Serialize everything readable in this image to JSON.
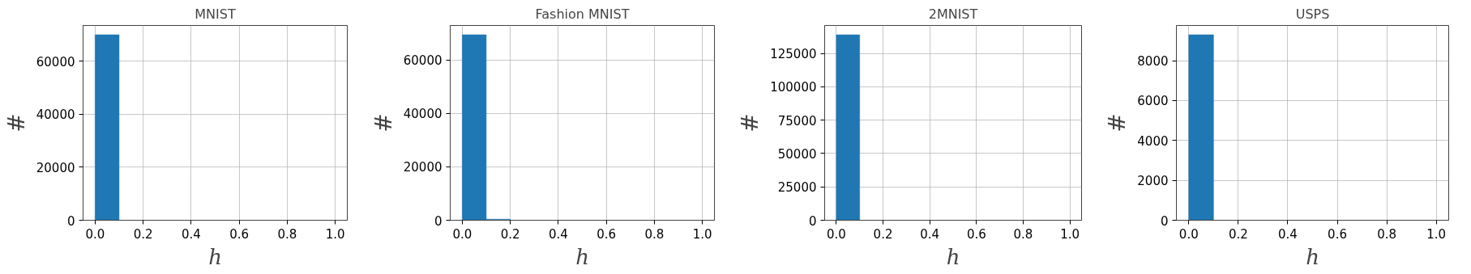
{
  "chart_data": [
    {
      "type": "histogram",
      "title": "MNIST",
      "xlabel": "h",
      "ylabel": "#",
      "bins": [
        0,
        0.1,
        0.2,
        0.3,
        0.4,
        0.5,
        0.6,
        0.7,
        0.8,
        0.9,
        1.0
      ],
      "values": [
        70000,
        0,
        0,
        0,
        0,
        0,
        0,
        0,
        0,
        0
      ],
      "color": "#1f77b4",
      "xlim": [
        -0.05,
        1.05
      ],
      "ylim": [
        0,
        73500
      ],
      "xticks": [
        {
          "value": 0,
          "label": "0.0"
        },
        {
          "value": 0.2,
          "label": "0.2"
        },
        {
          "value": 0.4,
          "label": "0.4"
        },
        {
          "value": 0.6,
          "label": "0.6"
        },
        {
          "value": 0.8,
          "label": "0.8"
        },
        {
          "value": 1,
          "label": "1.0"
        }
      ],
      "yticks": [
        0,
        20000,
        40000,
        60000
      ],
      "grid": true
    },
    {
      "type": "histogram",
      "title": "Fashion MNIST",
      "xlabel": "h",
      "ylabel": "#",
      "bins": [
        0,
        0.1,
        0.2,
        0.3,
        0.4,
        0.5,
        0.6,
        0.7,
        0.8,
        0.9,
        1.0
      ],
      "values": [
        69500,
        400,
        0,
        0,
        0,
        0,
        0,
        0,
        0,
        0
      ],
      "color": "#1f77b4",
      "xlim": [
        -0.05,
        1.05
      ],
      "ylim": [
        0,
        72975
      ],
      "xticks": [
        {
          "value": 0,
          "label": "0.0"
        },
        {
          "value": 0.2,
          "label": "0.2"
        },
        {
          "value": 0.4,
          "label": "0.4"
        },
        {
          "value": 0.6,
          "label": "0.6"
        },
        {
          "value": 0.8,
          "label": "0.8"
        },
        {
          "value": 1,
          "label": "1.0"
        }
      ],
      "yticks": [
        0,
        20000,
        40000,
        60000
      ],
      "grid": true
    },
    {
      "type": "histogram",
      "title": "2MNIST",
      "xlabel": "h",
      "ylabel": "#",
      "bins": [
        0,
        0.1,
        0.2,
        0.3,
        0.4,
        0.5,
        0.6,
        0.7,
        0.8,
        0.9,
        1.0
      ],
      "values": [
        139000,
        0,
        0,
        0,
        0,
        0,
        0,
        0,
        0,
        0
      ],
      "color": "#1f77b4",
      "xlim": [
        -0.05,
        1.05
      ],
      "ylim": [
        0,
        146000
      ],
      "xticks": [
        {
          "value": 0,
          "label": "0.0"
        },
        {
          "value": 0.2,
          "label": "0.2"
        },
        {
          "value": 0.4,
          "label": "0.4"
        },
        {
          "value": 0.6,
          "label": "0.6"
        },
        {
          "value": 0.8,
          "label": "0.8"
        },
        {
          "value": 1,
          "label": "1.0"
        }
      ],
      "yticks": [
        0,
        25000,
        50000,
        75000,
        100000,
        125000
      ],
      "grid": true
    },
    {
      "type": "histogram",
      "title": "USPS",
      "xlabel": "h",
      "ylabel": "#",
      "bins": [
        0,
        0.1,
        0.2,
        0.3,
        0.4,
        0.5,
        0.6,
        0.7,
        0.8,
        0.9,
        1.0
      ],
      "values": [
        9300,
        0,
        0,
        0,
        0,
        0,
        0,
        0,
        0,
        0
      ],
      "color": "#1f77b4",
      "xlim": [
        -0.05,
        1.05
      ],
      "ylim": [
        0,
        9765
      ],
      "xticks": [
        {
          "value": 0,
          "label": "0.0"
        },
        {
          "value": 0.2,
          "label": "0.2"
        },
        {
          "value": 0.4,
          "label": "0.4"
        },
        {
          "value": 0.6,
          "label": "0.6"
        },
        {
          "value": 0.8,
          "label": "0.8"
        },
        {
          "value": 1,
          "label": "1.0"
        }
      ],
      "yticks": [
        0,
        2000,
        4000,
        6000,
        8000
      ],
      "grid": true
    }
  ]
}
